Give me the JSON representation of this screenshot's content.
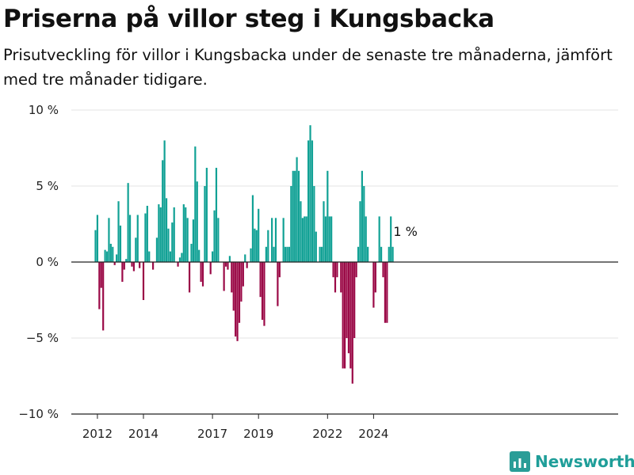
{
  "title": "Priserna på villor steg i Kungsbacka",
  "subtitle": "Prisutveckling för villor i Kungsbacka under de senaste tre månaderna, jämfört med tre månader tidigare.",
  "brand": {
    "name": "Newsworthy",
    "icon": "bar-chart-logo-icon",
    "color": "#2a9d97"
  },
  "colors": {
    "positive": "#11a195",
    "negative": "#9b0a47",
    "grid": "#e3e3e3",
    "zero": "#222222"
  },
  "chart_data": {
    "type": "bar",
    "title": "Priserna på villor steg i Kungsbacka",
    "xlabel": "",
    "ylabel": "",
    "ylim": [
      -10,
      10
    ],
    "yticks": [
      -10,
      -5,
      0,
      5,
      10
    ],
    "yticklabels": [
      "−10 %",
      "−5 %",
      "0 %",
      "5 %",
      "10 %"
    ],
    "xticks": [
      "2012",
      "2014",
      "2017",
      "2019",
      "2022",
      "2024"
    ],
    "grid": true,
    "annotation": "1 %",
    "unit": "%",
    "x_start": "2011-12",
    "x_step": "month",
    "values": [
      2.1,
      3.1,
      -3.1,
      -1.7,
      -4.5,
      0.8,
      0.7,
      2.9,
      1.2,
      1.0,
      -0.2,
      0.5,
      4.0,
      2.4,
      -1.3,
      -0.5,
      0.2,
      5.2,
      3.1,
      -0.3,
      -0.6,
      1.6,
      3.1,
      -0.4,
      0,
      -2.5,
      3.2,
      3.7,
      0.7,
      0,
      -0.5,
      0,
      1.6,
      3.8,
      3.6,
      6.7,
      8.0,
      4.2,
      2.2,
      0.7,
      2.6,
      3.6,
      0,
      -0.3,
      0.3,
      0.6,
      3.8,
      3.6,
      2.9,
      -2.0,
      1.2,
      2.8,
      7.6,
      5.3,
      0.8,
      -1.3,
      -1.6,
      5.0,
      6.2,
      0,
      -0.8,
      0.7,
      3.4,
      6.2,
      2.9,
      0,
      0,
      -1.9,
      -0.3,
      -0.5,
      0.4,
      -2.0,
      -3.2,
      -4.9,
      -5.2,
      -4.0,
      -2.6,
      -1.6,
      0.5,
      -0.4,
      0,
      0.9,
      4.4,
      2.2,
      2.1,
      3.5,
      -2.3,
      -3.8,
      -4.2,
      1.0,
      2.1,
      0,
      2.9,
      1.0,
      2.9,
      -2.9,
      -1.0,
      0,
      2.9,
      1.0,
      1.0,
      1.0,
      5.0,
      6.0,
      6.0,
      6.9,
      6.0,
      4.0,
      2.9,
      3.0,
      3.0,
      8.0,
      9.0,
      8.0,
      5.0,
      2.0,
      0,
      1.0,
      1.0,
      4.0,
      3.0,
      6.0,
      3.0,
      3.0,
      -1.0,
      -2.0,
      -1.0,
      0,
      -2.0,
      -7.0,
      -7.0,
      -5.0,
      -6.0,
      -7.0,
      -8.0,
      -5.0,
      -1.0,
      1.0,
      4.0,
      6.0,
      5.0,
      3.0,
      1.0,
      0,
      0,
      -3.0,
      -2.0,
      0,
      3.0,
      1.0,
      -1.0,
      -4.0,
      -4.0,
      1.0,
      3.0,
      1.0
    ]
  }
}
